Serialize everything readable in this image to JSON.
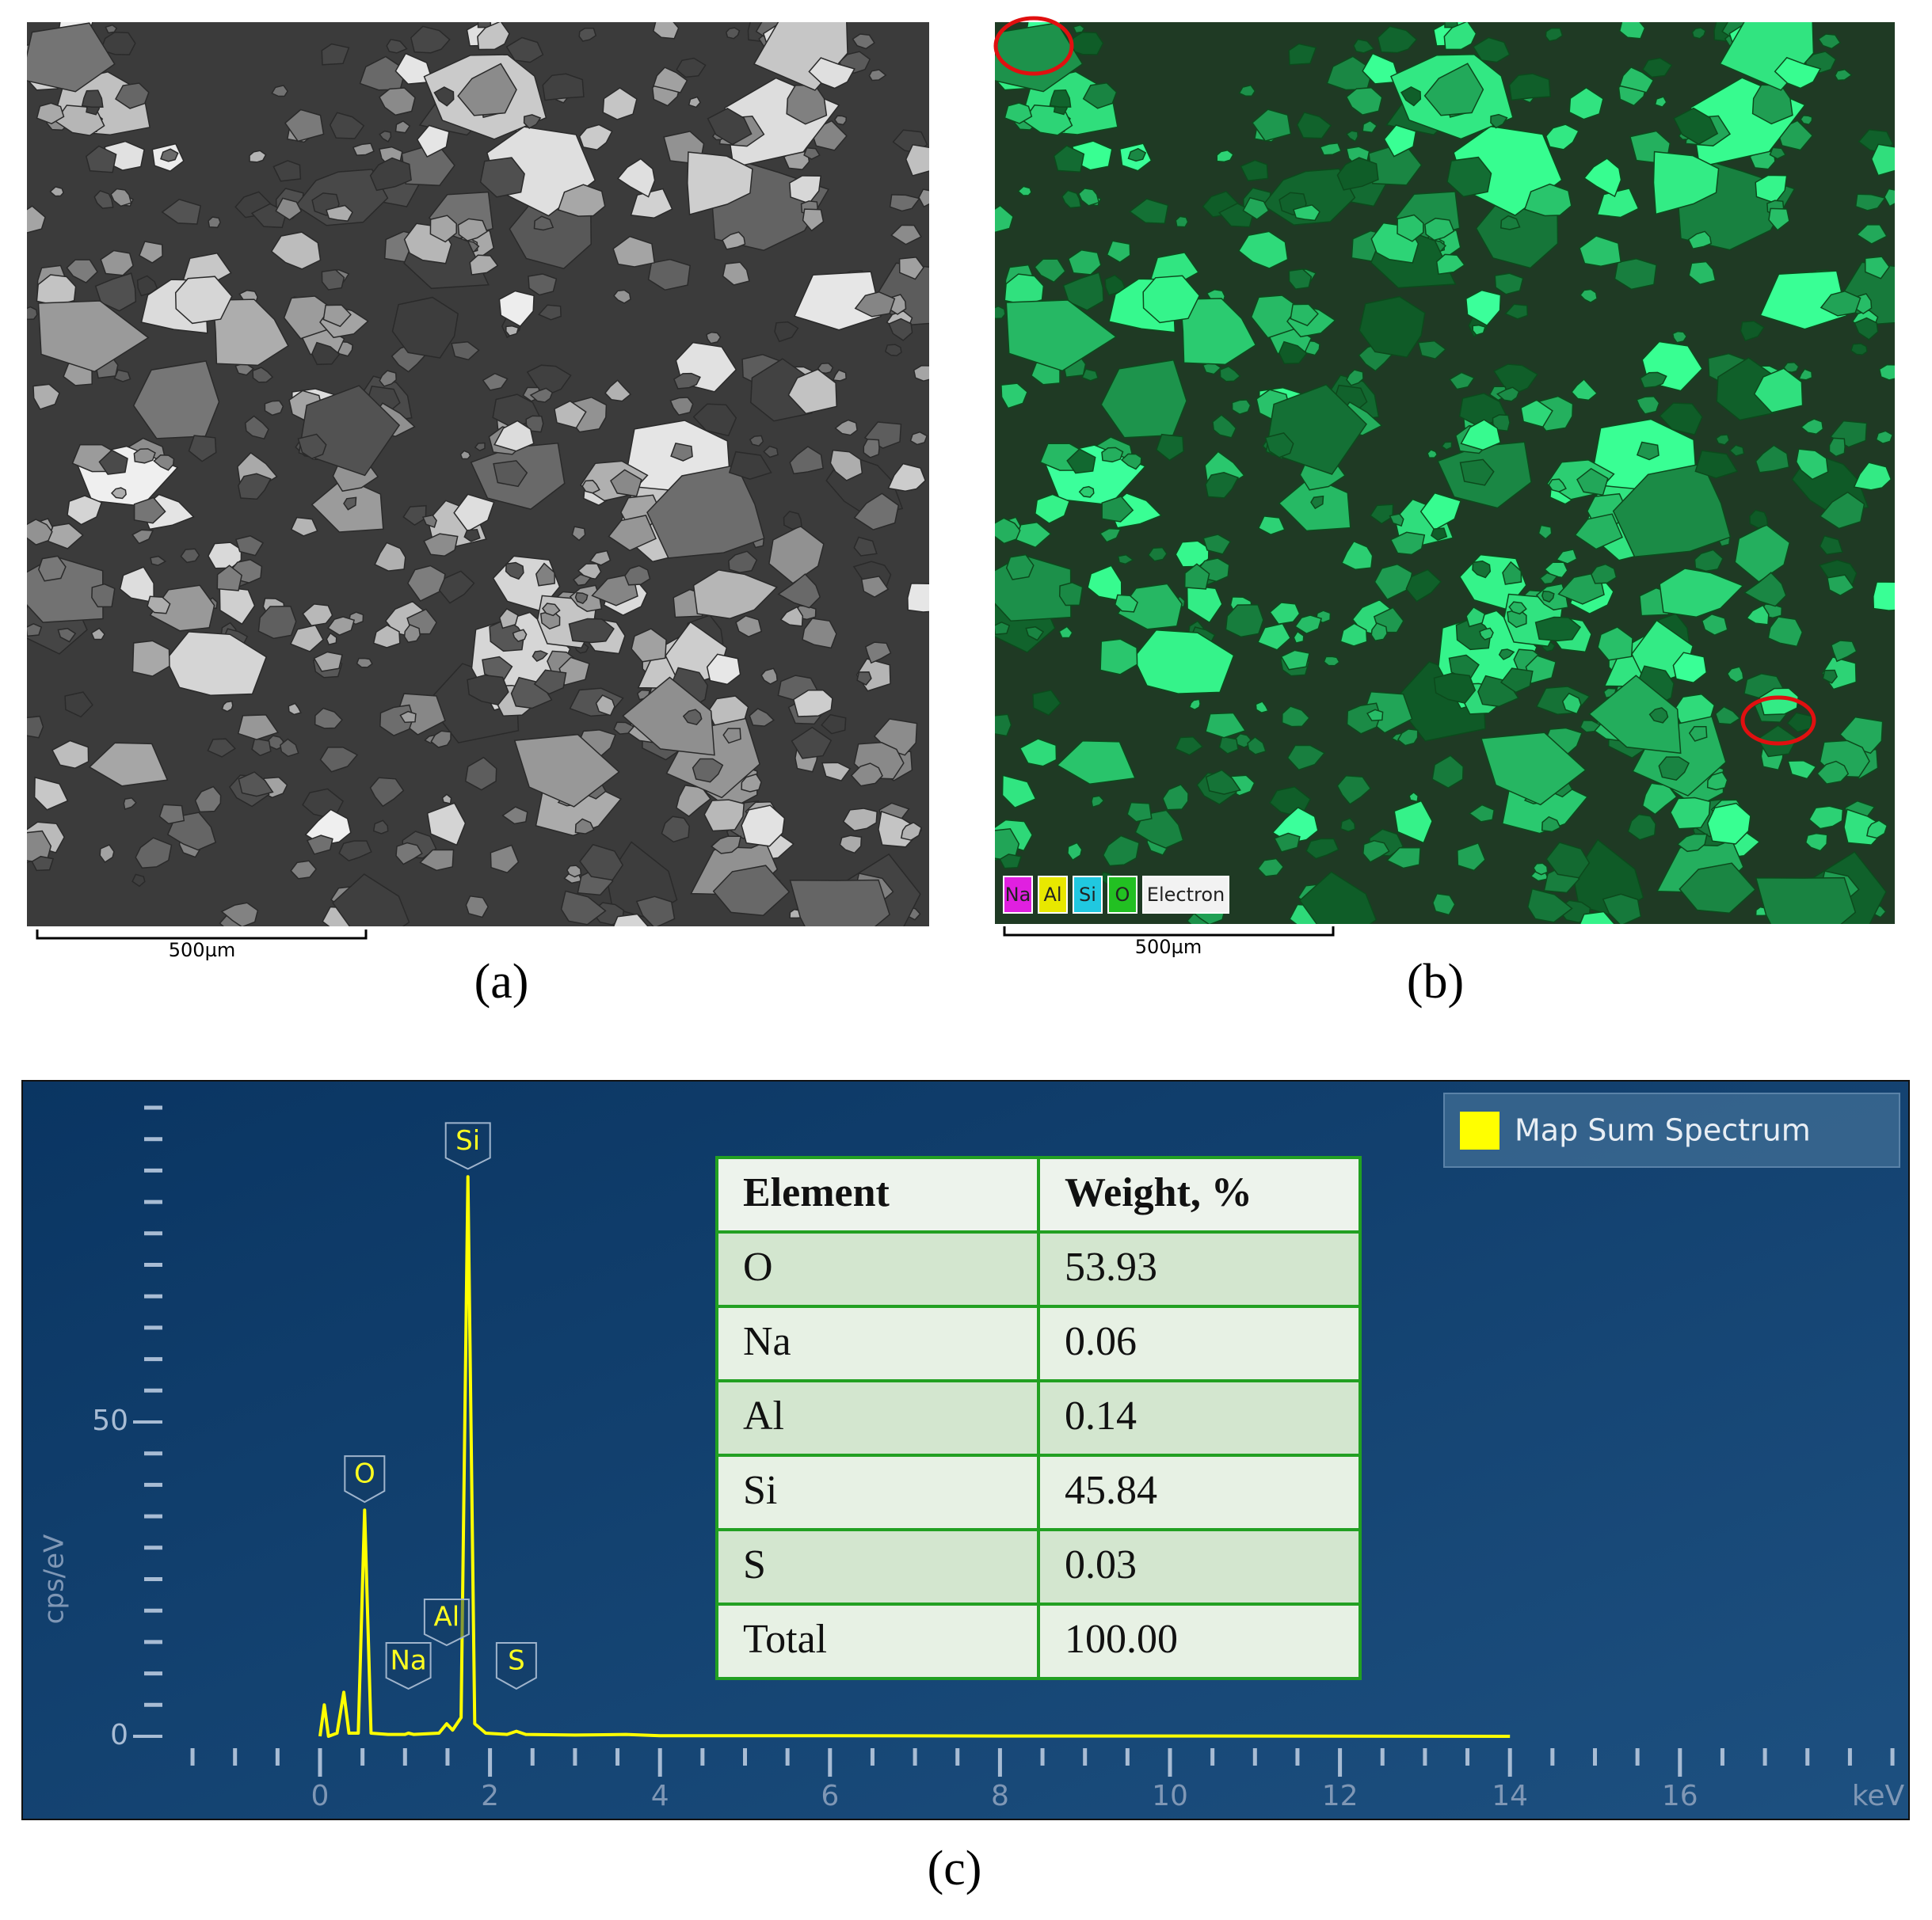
{
  "panels": {
    "a": {
      "label": "(a)",
      "scale_bar": "500µm"
    },
    "b": {
      "label": "(b)",
      "scale_bar": "500µm",
      "legend": [
        {
          "name": "Na",
          "color": "#e020e0"
        },
        {
          "name": "Al",
          "color": "#e8e800"
        },
        {
          "name": "Si",
          "color": "#20c8e0"
        },
        {
          "name": "O",
          "color": "#22c022"
        },
        {
          "name": "Electron",
          "color": "#f2f2f2"
        }
      ]
    },
    "c": {
      "label": "(c)"
    }
  },
  "chart_data": {
    "type": "line",
    "ylabel": "cps/eV",
    "xlabel": "keV",
    "x": [
      0,
      0.05,
      0.1,
      0.2,
      0.28,
      0.34,
      0.45,
      0.525,
      0.6,
      0.8,
      1.0,
      1.04,
      1.1,
      1.4,
      1.49,
      1.56,
      1.66,
      1.74,
      1.82,
      1.95,
      2.2,
      2.31,
      2.42,
      3.0,
      3.6,
      4.0,
      6.0,
      8.0,
      10.0,
      14.0
    ],
    "series": [
      {
        "name": "Map Sum Spectrum",
        "color": "#ffff00",
        "values": [
          0,
          5,
          0,
          0.5,
          7,
          0.5,
          0.5,
          36,
          0.5,
          0.3,
          0.3,
          0.5,
          0.3,
          0.5,
          2,
          1,
          3,
          89,
          2,
          0.5,
          0.3,
          0.8,
          0.3,
          0.2,
          0.3,
          0.1,
          0.1,
          0.05,
          0.05,
          0
        ]
      }
    ],
    "annotations": [
      {
        "text": "O",
        "x": 0.525,
        "y": 36
      },
      {
        "text": "Na",
        "x": 1.04,
        "y": 0.5
      },
      {
        "text": "Al",
        "x": 1.49,
        "y": 2
      },
      {
        "text": "Si",
        "x": 1.74,
        "y": 89
      },
      {
        "text": "S",
        "x": 2.31,
        "y": 0.8
      }
    ],
    "xlim": [
      -1.6,
      18.7
    ],
    "ylim": [
      -2,
      100
    ],
    "xticks": [
      0,
      2,
      4,
      6,
      8,
      10,
      12,
      14,
      16
    ],
    "xminorticks": [
      -1.5,
      -1,
      -0.5,
      0.5,
      1,
      1.5,
      2.5,
      3,
      3.5,
      4.5,
      5,
      5.5,
      6.5,
      7,
      7.5,
      8.5,
      9,
      9.5,
      10.5,
      11,
      11.5,
      12.5,
      13,
      13.5,
      14.5,
      15,
      15.5,
      16.5,
      17,
      17.5,
      18,
      18.5
    ],
    "yticks": [
      0,
      50
    ],
    "yminorticks": [
      5,
      10,
      15,
      20,
      25,
      30,
      35,
      40,
      45,
      55,
      60,
      65,
      70,
      75,
      80,
      85,
      90,
      95,
      100
    ],
    "table": {
      "header": [
        "Element",
        "Weight, %"
      ],
      "rows": [
        [
          "O",
          "53.93"
        ],
        [
          "Na",
          "0.06"
        ],
        [
          "Al",
          "0.14"
        ],
        [
          "Si",
          "45.84"
        ],
        [
          "S",
          "0.03"
        ],
        [
          "Total",
          "100.00"
        ]
      ]
    }
  }
}
